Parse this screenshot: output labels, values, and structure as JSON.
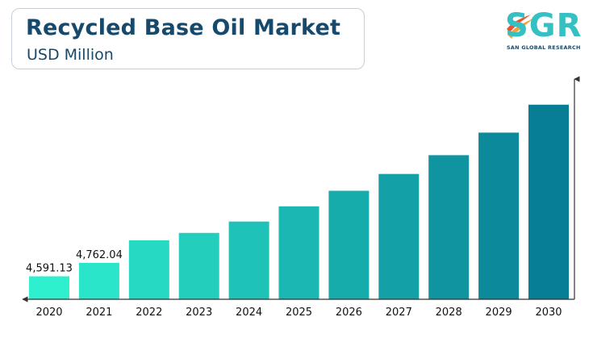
{
  "header": {
    "title": "Recycled Base Oil Market",
    "subtitle": "USD Million"
  },
  "logo": {
    "text": "SGR",
    "tagline": "SAN GLOBAL RESEARCH",
    "icon": "swoosh-logo-icon"
  },
  "colors": {
    "title": "#16496b",
    "bar_start": "#2ef0cf",
    "bar_end": "#087e94",
    "axis": "#333333"
  },
  "chart_data": {
    "type": "bar",
    "title": "Recycled Base Oil Market",
    "ylabel": "USD Million",
    "xlabel": "",
    "categories": [
      "2020",
      "2021",
      "2022",
      "2023",
      "2024",
      "2025",
      "2026",
      "2027",
      "2028",
      "2029",
      "2030"
    ],
    "values": [
      4591.13,
      4762.04,
      5048,
      5141,
      5285,
      5478,
      5675,
      5888,
      6126,
      6412,
      6766
    ],
    "data_labels": [
      "4,591.13",
      "4,762.04",
      "",
      "",
      "",
      "",
      "",
      "",
      "",
      "",
      ""
    ],
    "ylim": [
      4300,
      6866
    ],
    "grid": false,
    "legend": "none",
    "y_axis_ticks_shown": false
  }
}
